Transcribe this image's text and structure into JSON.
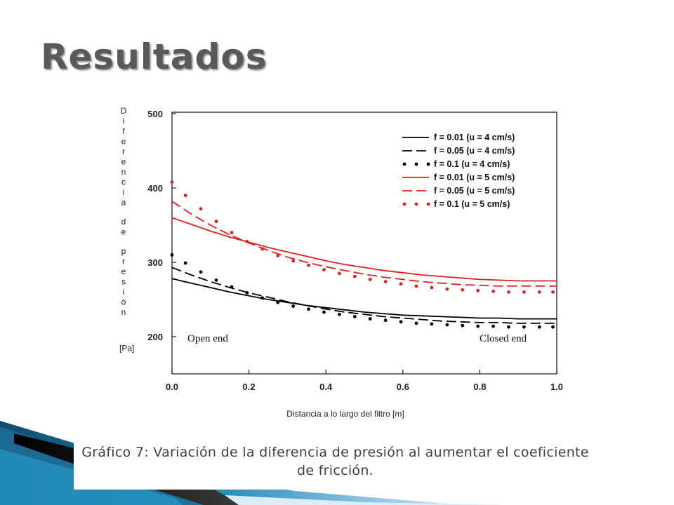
{
  "slide": {
    "title": "Resultados",
    "caption": "Gráfico 7: Variación de la diferencia de presión al aumentar el coeficiente de fricción."
  },
  "chart_data": {
    "type": "line",
    "xlabel": "Distancia a lo largo del filtro [m]",
    "ylabel": "Diferencia de presión [Pa]",
    "xlim": [
      0,
      1
    ],
    "ylim": [
      150,
      500
    ],
    "x_ticks": [
      "0.0",
      "0.2",
      "0.4",
      "0.6",
      "0.8",
      "1.0"
    ],
    "y_ticks": [
      "200",
      "300",
      "400",
      "500"
    ],
    "annotations": [
      "Open end",
      "Closed end"
    ],
    "legend_position": "top-right",
    "grid": false,
    "series": [
      {
        "name": "f = 0.01 (u = 4 cm/s)",
        "style": "solid",
        "color": "#000000",
        "x": [
          0,
          0.05,
          0.1,
          0.15,
          0.2,
          0.25,
          0.3,
          0.35,
          0.4,
          0.45,
          0.5,
          0.55,
          0.6,
          0.65,
          0.7,
          0.75,
          0.8,
          0.85,
          0.9,
          0.95,
          1.0
        ],
        "y": [
          278,
          272,
          266,
          260,
          255,
          250,
          246,
          242,
          239,
          236,
          233,
          231,
          229,
          228,
          227,
          226,
          225,
          225,
          224,
          224,
          224
        ]
      },
      {
        "name": "f = 0.05 (u = 4 cm/s)",
        "style": "dashed",
        "color": "#000000",
        "x": [
          0,
          0.05,
          0.1,
          0.15,
          0.2,
          0.25,
          0.3,
          0.35,
          0.4,
          0.45,
          0.5,
          0.55,
          0.6,
          0.65,
          0.7,
          0.75,
          0.8,
          0.85,
          0.9,
          0.95,
          1.0
        ],
        "y": [
          293,
          283,
          274,
          266,
          259,
          253,
          247,
          242,
          237,
          233,
          230,
          227,
          225,
          223,
          221,
          220,
          219,
          219,
          218,
          218,
          218
        ]
      },
      {
        "name": "f = 0.1 (u = 4 cm/s)",
        "style": "dotted",
        "color": "#000000",
        "x": [
          0,
          0.035,
          0.075,
          0.115,
          0.155,
          0.195,
          0.235,
          0.275,
          0.315,
          0.355,
          0.395,
          0.435,
          0.475,
          0.515,
          0.555,
          0.595,
          0.635,
          0.675,
          0.715,
          0.755,
          0.795,
          0.835,
          0.875,
          0.915,
          0.955,
          0.99
        ],
        "y": [
          310,
          299,
          287,
          276,
          267,
          259,
          252,
          246,
          241,
          237,
          233,
          230,
          227,
          224,
          222,
          220,
          218,
          217,
          216,
          215,
          214,
          214,
          213,
          213,
          213,
          213
        ]
      },
      {
        "name": "f = 0.01 (u = 5 cm/s)",
        "style": "solid",
        "color": "#e02020",
        "x": [
          0,
          0.05,
          0.1,
          0.15,
          0.2,
          0.25,
          0.3,
          0.35,
          0.4,
          0.45,
          0.5,
          0.55,
          0.6,
          0.65,
          0.7,
          0.75,
          0.8,
          0.85,
          0.9,
          0.95,
          1.0
        ],
        "y": [
          360,
          351,
          342,
          334,
          327,
          320,
          314,
          308,
          302,
          297,
          293,
          289,
          286,
          283,
          281,
          279,
          277,
          276,
          275,
          275,
          275
        ]
      },
      {
        "name": "f = 0.05 (u = 5 cm/s)",
        "style": "dashed",
        "color": "#e02020",
        "x": [
          0,
          0.05,
          0.1,
          0.15,
          0.2,
          0.25,
          0.3,
          0.35,
          0.4,
          0.45,
          0.5,
          0.55,
          0.6,
          0.65,
          0.7,
          0.75,
          0.8,
          0.85,
          0.9,
          0.95,
          1.0
        ],
        "y": [
          382,
          365,
          350,
          337,
          326,
          316,
          307,
          300,
          294,
          289,
          284,
          280,
          277,
          274,
          272,
          270,
          269,
          268,
          268,
          268,
          268
        ]
      },
      {
        "name": "f = 0.1 (u = 5 cm/s)",
        "style": "dotted",
        "color": "#e02020",
        "x": [
          0,
          0.035,
          0.075,
          0.115,
          0.155,
          0.195,
          0.235,
          0.275,
          0.315,
          0.355,
          0.395,
          0.435,
          0.475,
          0.515,
          0.555,
          0.595,
          0.635,
          0.675,
          0.715,
          0.755,
          0.795,
          0.835,
          0.875,
          0.915,
          0.955,
          0.99
        ],
        "y": [
          408,
          390,
          372,
          355,
          340,
          328,
          318,
          309,
          302,
          296,
          290,
          285,
          281,
          277,
          274,
          271,
          268,
          266,
          264,
          263,
          262,
          261,
          260,
          260,
          260,
          260
        ]
      }
    ]
  },
  "colors": {
    "title": "#595959",
    "caption": "#404040",
    "decor_dark": "#1a3c5a",
    "decor_light": "#a9d5ea"
  }
}
